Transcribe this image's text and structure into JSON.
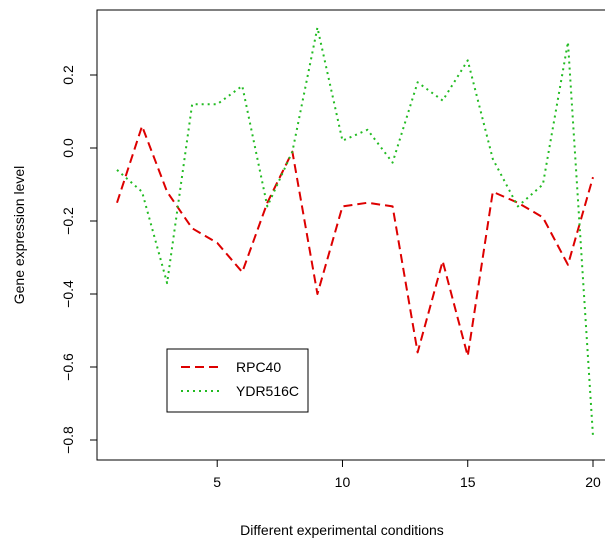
{
  "chart_data": {
    "type": "line",
    "xlabel": "Different experimental conditions",
    "ylabel": "Gene expression level",
    "xlim": [
      1,
      20
    ],
    "ylim": [
      -0.8,
      0.33
    ],
    "x_ticks": [
      5,
      10,
      15,
      20
    ],
    "y_ticks": [
      -0.8,
      -0.6,
      -0.4,
      -0.2,
      0.0,
      0.2
    ],
    "y_tick_labels": [
      "−0.8",
      "−0.6",
      "−0.4",
      "−0.2",
      "0.0",
      "0.2"
    ],
    "grid": false,
    "legend_position": "bottom-left",
    "x": [
      1,
      2,
      3,
      4,
      5,
      6,
      7,
      8,
      9,
      10,
      11,
      12,
      13,
      14,
      15,
      16,
      17,
      18,
      19,
      20
    ],
    "series": [
      {
        "name": "RPC40",
        "color": "#dd0000",
        "dash": "dashed",
        "values": [
          -0.15,
          0.06,
          -0.12,
          -0.22,
          -0.26,
          -0.34,
          -0.15,
          -0.01,
          -0.4,
          -0.16,
          -0.15,
          -0.16,
          -0.56,
          -0.31,
          -0.57,
          -0.12,
          -0.15,
          -0.19,
          -0.32,
          -0.08
        ]
      },
      {
        "name": "YDR516C",
        "color": "#22bb22",
        "dash": "dotted",
        "values": [
          -0.06,
          -0.12,
          -0.37,
          0.12,
          0.12,
          0.17,
          -0.16,
          -0.01,
          0.33,
          0.02,
          0.05,
          -0.04,
          0.18,
          0.13,
          0.24,
          -0.03,
          -0.16,
          -0.1,
          0.29,
          -0.79
        ]
      }
    ]
  }
}
